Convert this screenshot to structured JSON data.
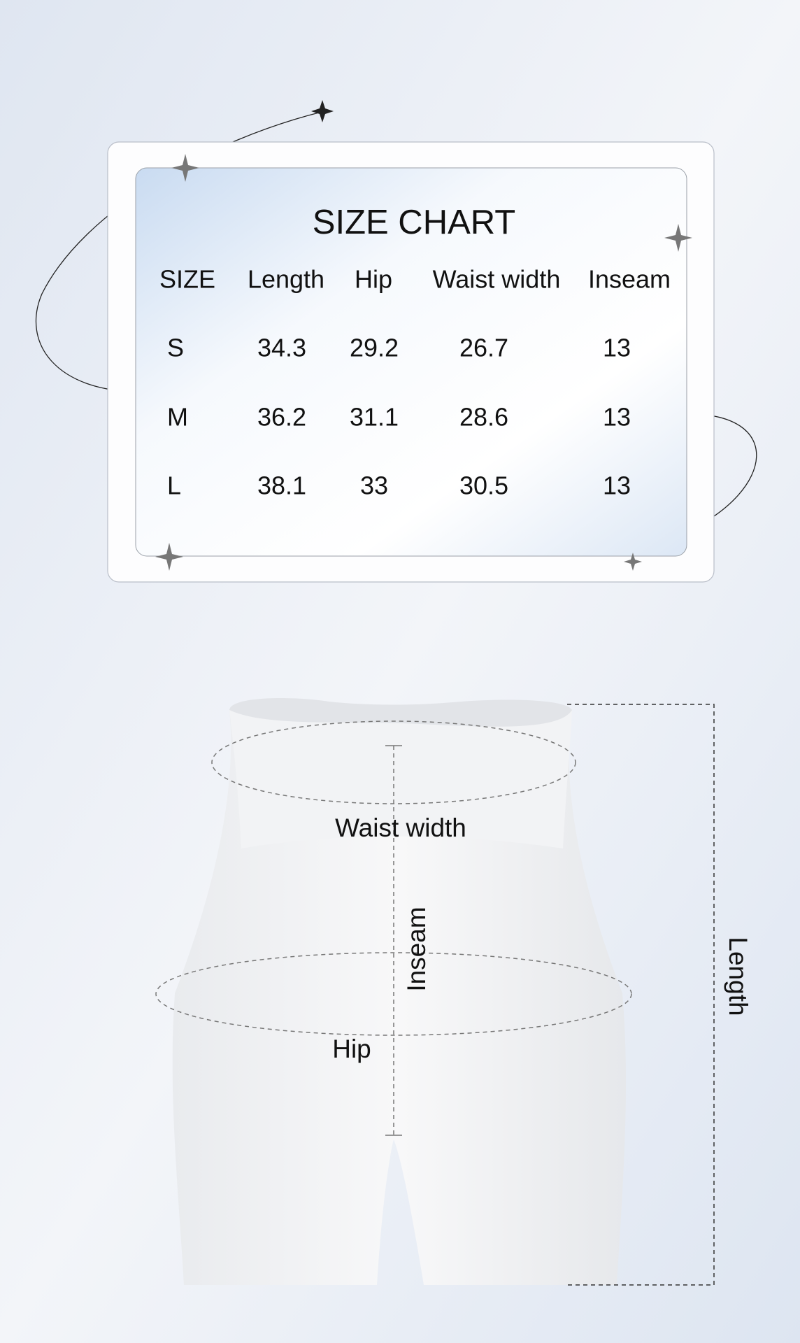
{
  "title": "SIZE CHART",
  "table": {
    "header": [
      "SIZE",
      "Length",
      "Hip",
      "Waist width",
      "Inseam"
    ],
    "rows": [
      [
        "S",
        "34.3",
        "29.2",
        "26.7",
        "13"
      ],
      [
        "M",
        "36.2",
        "31.1",
        "28.6",
        "13"
      ],
      [
        "L",
        "38.1",
        "33",
        "30.5",
        "13"
      ]
    ]
  },
  "diagram": {
    "waist_width": "Waist width",
    "inseam": "Inseam",
    "hip": "Hip",
    "length": "Length"
  }
}
